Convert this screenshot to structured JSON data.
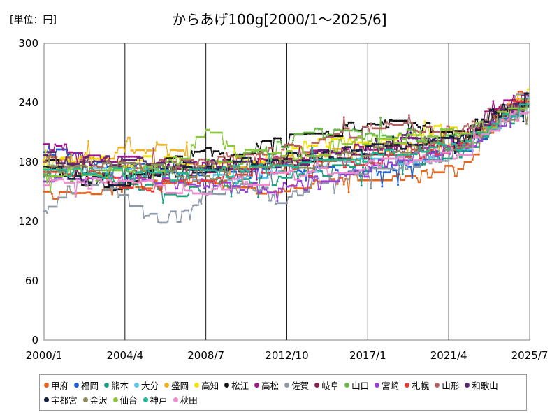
{
  "unit_label": "[単位：円]",
  "chart_data": {
    "type": "line",
    "title": "からあげ100g[2000/1～2025/6]",
    "xlabel": "",
    "ylabel": "",
    "x_range": [
      "2000-01",
      "2025-07"
    ],
    "x_ticks": [
      "2000/1",
      "2004/4",
      "2008/7",
      "2012/10",
      "2017/1",
      "2021/4",
      "2025/7"
    ],
    "y_ticks": [
      0,
      60,
      120,
      180,
      240,
      300
    ],
    "ylim": [
      0,
      300
    ],
    "grid": "vertical",
    "legend_position": "bottom",
    "series": [
      {
        "name": "甲府",
        "color": "#e8641b",
        "x": [
          "2000-01",
          "2002-01",
          "2004-01",
          "2006-01",
          "2008-01",
          "2010-01",
          "2012-01",
          "2014-01",
          "2016-01",
          "2018-01",
          "2020-01",
          "2022-01",
          "2023-06",
          "2025-06"
        ],
        "values": [
          150,
          145,
          155,
          160,
          165,
          155,
          150,
          160,
          165,
          165,
          170,
          172,
          215,
          255
        ]
      },
      {
        "name": "福岡",
        "color": "#1f5fd6",
        "x": [
          "2000-01",
          "2002-01",
          "2004-01",
          "2006-01",
          "2008-01",
          "2010-01",
          "2012-01",
          "2014-01",
          "2016-01",
          "2018-01",
          "2020-01",
          "2022-01",
          "2023-06",
          "2025-06"
        ],
        "values": [
          190,
          185,
          178,
          170,
          165,
          168,
          170,
          172,
          170,
          172,
          185,
          190,
          215,
          245
        ]
      },
      {
        "name": "熊本",
        "color": "#1fa080",
        "x": [
          "2000-01",
          "2002-01",
          "2004-01",
          "2006-01",
          "2008-01",
          "2010-01",
          "2012-01",
          "2014-01",
          "2016-01",
          "2018-01",
          "2020-01",
          "2022-01",
          "2023-06",
          "2025-06"
        ],
        "values": [
          165,
          168,
          160,
          150,
          152,
          158,
          162,
          170,
          172,
          180,
          182,
          190,
          210,
          240
        ]
      },
      {
        "name": "大分",
        "color": "#5ec3ea",
        "x": [
          "2000-01",
          "2002-01",
          "2004-01",
          "2006-01",
          "2008-01",
          "2010-01",
          "2012-01",
          "2014-01",
          "2016-01",
          "2018-01",
          "2020-01",
          "2022-01",
          "2023-06",
          "2025-06"
        ],
        "values": [
          172,
          170,
          175,
          168,
          160,
          165,
          170,
          175,
          178,
          182,
          185,
          195,
          215,
          240
        ]
      },
      {
        "name": "盛岡",
        "color": "#f0b020",
        "x": [
          "2000-01",
          "2002-01",
          "2004-01",
          "2006-01",
          "2008-01",
          "2010-01",
          "2012-01",
          "2014-01",
          "2016-01",
          "2018-01",
          "2020-01",
          "2022-01",
          "2023-06",
          "2025-06"
        ],
        "values": [
          182,
          185,
          195,
          195,
          180,
          178,
          180,
          185,
          190,
          195,
          195,
          200,
          220,
          245
        ]
      },
      {
        "name": "高知",
        "color": "#f2e300",
        "x": [
          "2000-01",
          "2002-01",
          "2004-01",
          "2006-01",
          "2008-01",
          "2010-01",
          "2012-01",
          "2014-01",
          "2016-01",
          "2018-01",
          "2020-01",
          "2022-01",
          "2023-06",
          "2025-06"
        ],
        "values": [
          178,
          180,
          182,
          180,
          178,
          180,
          185,
          200,
          200,
          205,
          210,
          212,
          225,
          250
        ]
      },
      {
        "name": "松江",
        "color": "#111111",
        "x": [
          "2000-01",
          "2002-01",
          "2004-01",
          "2006-01",
          "2008-01",
          "2010-01",
          "2012-01",
          "2014-01",
          "2016-01",
          "2018-01",
          "2020-01",
          "2022-01",
          "2023-06",
          "2025-06"
        ],
        "values": [
          180,
          160,
          155,
          172,
          190,
          185,
          200,
          205,
          215,
          220,
          215,
          205,
          230,
          240
        ]
      },
      {
        "name": "高松",
        "color": "#a0178a",
        "x": [
          "2000-01",
          "2002-01",
          "2004-01",
          "2006-01",
          "2008-01",
          "2010-01",
          "2012-01",
          "2014-01",
          "2016-01",
          "2018-01",
          "2020-01",
          "2022-01",
          "2023-06",
          "2025-06"
        ],
        "values": [
          198,
          190,
          180,
          178,
          175,
          178,
          182,
          188,
          192,
          198,
          200,
          205,
          235,
          245
        ]
      },
      {
        "name": "佐賀",
        "color": "#8f9aa8",
        "x": [
          "2000-01",
          "2001-01",
          "2003-01",
          "2005-06",
          "2007-01",
          "2009-01",
          "2011-01",
          "2012-06",
          "2014-01",
          "2016-01",
          "2018-01",
          "2020-01",
          "2022-01",
          "2023-06",
          "2025-06"
        ],
        "values": [
          130,
          150,
          160,
          122,
          122,
          150,
          155,
          135,
          160,
          165,
          175,
          180,
          195,
          220,
          255
        ]
      },
      {
        "name": "岐阜",
        "color": "#8a2050",
        "x": [
          "2000-01",
          "2002-01",
          "2004-01",
          "2006-01",
          "2008-01",
          "2010-01",
          "2012-01",
          "2014-01",
          "2016-01",
          "2018-01",
          "2020-01",
          "2022-01",
          "2023-06",
          "2025-06"
        ],
        "values": [
          175,
          172,
          170,
          168,
          170,
          175,
          178,
          182,
          185,
          190,
          195,
          200,
          225,
          245
        ]
      },
      {
        "name": "山口",
        "color": "#6ab84a",
        "x": [
          "2000-01",
          "2002-01",
          "2004-01",
          "2006-01",
          "2008-01",
          "2010-01",
          "2012-01",
          "2014-01",
          "2016-01",
          "2018-01",
          "2020-01",
          "2022-01",
          "2023-06",
          "2025-06"
        ],
        "values": [
          168,
          165,
          170,
          175,
          175,
          180,
          195,
          210,
          210,
          210,
          205,
          200,
          215,
          245
        ]
      },
      {
        "name": "宮崎",
        "color": "#9b3fd6",
        "x": [
          "2000-01",
          "2002-01",
          "2004-01",
          "2006-01",
          "2008-01",
          "2010-01",
          "2012-01",
          "2014-01",
          "2016-01",
          "2018-01",
          "2020-01",
          "2022-01",
          "2023-06",
          "2025-06"
        ],
        "values": [
          160,
          162,
          165,
          160,
          158,
          155,
          152,
          160,
          170,
          180,
          190,
          195,
          215,
          240
        ]
      },
      {
        "name": "札幌",
        "color": "#e63a3a",
        "x": [
          "2000-01",
          "2002-01",
          "2004-01",
          "2006-01",
          "2008-01",
          "2010-01",
          "2012-01",
          "2014-01",
          "2016-01",
          "2018-01",
          "2020-01",
          "2022-01",
          "2023-06",
          "2025-06"
        ],
        "values": [
          170,
          168,
          160,
          155,
          160,
          165,
          170,
          175,
          180,
          185,
          190,
          198,
          220,
          250
        ]
      },
      {
        "name": "山形",
        "color": "#b56060",
        "x": [
          "2000-01",
          "2002-01",
          "2004-01",
          "2006-01",
          "2008-01",
          "2010-01",
          "2012-01",
          "2014-01",
          "2016-01",
          "2018-01",
          "2020-01",
          "2022-01",
          "2023-06",
          "2025-06"
        ],
        "values": [
          180,
          178,
          175,
          178,
          180,
          185,
          190,
          195,
          210,
          220,
          215,
          210,
          230,
          245
        ]
      },
      {
        "name": "和歌山",
        "color": "#5a2870",
        "x": [
          "2000-01",
          "2002-01",
          "2004-01",
          "2006-01",
          "2008-01",
          "2010-01",
          "2012-01",
          "2014-01",
          "2016-01",
          "2018-01",
          "2020-01",
          "2022-01",
          "2023-06",
          "2025-06"
        ],
        "values": [
          185,
          182,
          180,
          178,
          175,
          178,
          180,
          185,
          190,
          195,
          200,
          205,
          225,
          240
        ]
      },
      {
        "name": "宇都宮",
        "color": "#13213f",
        "x": [
          "2000-01",
          "2002-01",
          "2004-01",
          "2006-01",
          "2008-01",
          "2010-01",
          "2012-01",
          "2014-01",
          "2016-01",
          "2018-01",
          "2020-01",
          "2022-01",
          "2023-06",
          "2025-06"
        ],
        "values": [
          175,
          165,
          160,
          168,
          172,
          178,
          180,
          185,
          190,
          195,
          200,
          205,
          230,
          245
        ]
      },
      {
        "name": "金沢",
        "color": "#8a8a5a",
        "x": [
          "2000-01",
          "2002-01",
          "2004-01",
          "2006-01",
          "2008-01",
          "2010-01",
          "2012-01",
          "2014-01",
          "2016-01",
          "2018-01",
          "2020-01",
          "2022-01",
          "2023-06",
          "2025-06"
        ],
        "values": [
          170,
          172,
          175,
          172,
          170,
          172,
          175,
          180,
          185,
          190,
          195,
          200,
          215,
          235
        ]
      },
      {
        "name": "仙台",
        "color": "#8cc63f",
        "x": [
          "2000-01",
          "2002-01",
          "2004-01",
          "2006-01",
          "2007-06",
          "2008-06",
          "2010-01",
          "2012-01",
          "2014-01",
          "2016-01",
          "2018-01",
          "2020-01",
          "2022-01",
          "2023-06",
          "2025-06"
        ],
        "values": [
          165,
          168,
          170,
          175,
          185,
          215,
          190,
          185,
          190,
          200,
          205,
          205,
          210,
          220,
          245
        ]
      },
      {
        "name": "神戸",
        "color": "#1fb892",
        "x": [
          "2000-01",
          "2002-01",
          "2004-01",
          "2006-01",
          "2008-01",
          "2010-01",
          "2012-01",
          "2014-01",
          "2016-01",
          "2018-01",
          "2020-01",
          "2022-01",
          "2023-06",
          "2025-06"
        ],
        "values": [
          172,
          170,
          168,
          165,
          168,
          170,
          175,
          178,
          182,
          188,
          192,
          198,
          218,
          240
        ]
      },
      {
        "name": "秋田",
        "color": "#f08ad0",
        "x": [
          "2000-01",
          "2002-01",
          "2004-01",
          "2006-01",
          "2008-01",
          "2010-01",
          "2012-01",
          "2014-01",
          "2016-01",
          "2018-01",
          "2020-01",
          "2022-01",
          "2023-06",
          "2025-06"
        ],
        "values": [
          160,
          158,
          160,
          155,
          150,
          158,
          165,
          170,
          175,
          180,
          185,
          190,
          210,
          235
        ]
      }
    ]
  }
}
